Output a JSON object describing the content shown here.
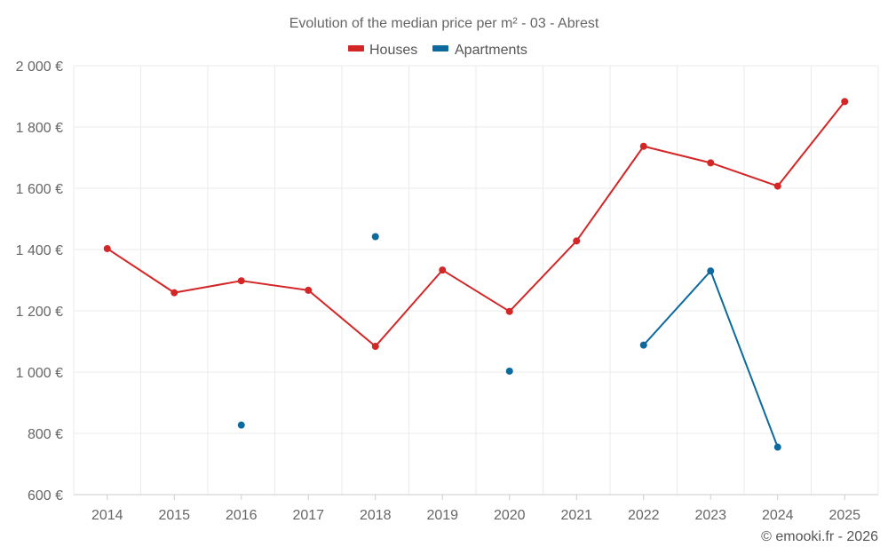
{
  "chart_data": {
    "type": "line",
    "title": "Evolution of the median price per m² - 03 - Abrest",
    "xlabel": "",
    "ylabel": "",
    "categories": [
      "2014",
      "2015",
      "2016",
      "2017",
      "2018",
      "2019",
      "2020",
      "2021",
      "2022",
      "2023",
      "2024",
      "2025"
    ],
    "ylim": [
      600,
      2000
    ],
    "y_ticks": [
      600,
      800,
      1000,
      1200,
      1400,
      1600,
      1800,
      2000
    ],
    "y_tick_labels": [
      "600 €",
      "800 €",
      "1 000 €",
      "1 200 €",
      "1 400 €",
      "1 600 €",
      "1 800 €",
      "2 000 €"
    ],
    "grid": true,
    "legend_position": "top",
    "series": [
      {
        "name": "Houses",
        "color": "#d32626",
        "values": [
          1403,
          1259,
          1298,
          1267,
          1084,
          1333,
          1198,
          1428,
          1737,
          1683,
          1607,
          1883
        ]
      },
      {
        "name": "Apartments",
        "color": "#0d6a9c",
        "values": [
          null,
          null,
          827,
          null,
          1442,
          null,
          1003,
          null,
          1088,
          1330,
          755,
          null
        ]
      }
    ],
    "credit": "© emooki.fr - 2026"
  }
}
